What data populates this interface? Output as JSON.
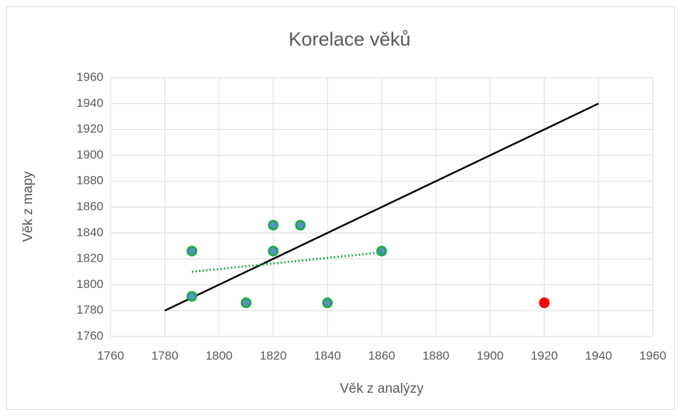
{
  "chart_data": {
    "type": "scatter",
    "title": "Korelace věků",
    "xlabel": "Věk z analýzy",
    "ylabel": "Věk z mapy",
    "xlim": [
      1760,
      1960
    ],
    "xticks": [
      1760,
      1780,
      1800,
      1820,
      1840,
      1860,
      1880,
      1900,
      1920,
      1940,
      1960
    ],
    "ylim": [
      1760,
      1960
    ],
    "yticks": [
      1760,
      1780,
      1800,
      1820,
      1840,
      1860,
      1880,
      1900,
      1920,
      1940,
      1960
    ],
    "grid": true,
    "series": [
      {
        "mode": "markers",
        "color": "#5b8fcb",
        "edgecolor": "#1faa4b",
        "x": [
          1790,
          1790,
          1810,
          1820,
          1820,
          1830,
          1840,
          1860
        ],
        "values": [
          1826,
          1791,
          1786,
          1846,
          1826,
          1846,
          1786,
          1826
        ]
      },
      {
        "mode": "markers",
        "color": "#ff0000",
        "edgecolor": "#ff0000",
        "x": [
          1920
        ],
        "values": [
          1786
        ]
      },
      {
        "mode": "line",
        "color": "#000000",
        "x": [
          1780,
          1940
        ],
        "values": [
          1780,
          1940
        ]
      },
      {
        "mode": "dotted",
        "color": "#1faa4b",
        "x": [
          1790,
          1860
        ],
        "values": [
          1810,
          1825
        ]
      }
    ]
  }
}
